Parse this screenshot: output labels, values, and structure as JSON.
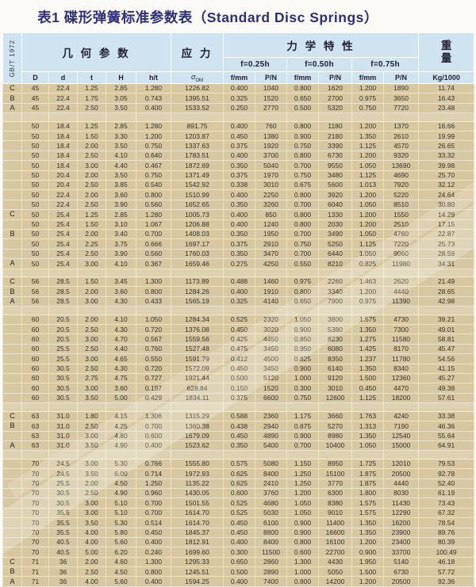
{
  "title": "表1 碟形弹簧标准参数表（Standard Disc Springs）",
  "standard_code": "GB/T 1972",
  "colors": {
    "header_bg": "#cfe3f0",
    "cell_bg": "#d8c8a2",
    "grid": "#eae2cc",
    "title_text": "#2d2f7b"
  },
  "table": {
    "group_headers": {
      "geometry": "几 何 参 数",
      "stress": "应 力",
      "mechanics": "力 学 特 性",
      "weight_line1": "重",
      "weight_line2": "量"
    },
    "deflection_headers": [
      "f=0.25h",
      "f=0.50h",
      "f=0.75h"
    ],
    "column_headers": {
      "D": "D",
      "d": "d",
      "t": "t",
      "H": "H",
      "ht": "h/t",
      "sigma": "σ",
      "sigma_sub": "OM",
      "f": "f/mm",
      "p": "P/N",
      "weight": "Kg/1000"
    },
    "rows": [
      {
        "g": "C",
        "c": [
          "45",
          "22.4",
          "1.25",
          "2.85",
          "1.280",
          "1226.82",
          "0.400",
          "1040",
          "0.800",
          "1620",
          "1.200",
          "1890",
          "11.74"
        ]
      },
      {
        "g": "B",
        "c": [
          "45",
          "22.4",
          "1.75",
          "3.05",
          "0.743",
          "1395.51",
          "0.325",
          "1520",
          "0.650",
          "2700",
          "0.975",
          "3650",
          "16.43"
        ]
      },
      {
        "g": "A",
        "c": [
          "45",
          "22.4",
          "2.50",
          "3.50",
          "0.400",
          "1533.52",
          "0.250",
          "2770",
          "0.500",
          "5320",
          "0.750",
          "7720",
          "23.48"
        ]
      },
      {
        "sep": true
      },
      {
        "g": "",
        "c": [
          "50",
          "18.4",
          "1.25",
          "2.85",
          "1.280",
          "891.75",
          "0.400",
          "760",
          "0.800",
          "1180",
          "1.200",
          "1370",
          "16.66"
        ]
      },
      {
        "g": "",
        "c": [
          "50",
          "18.4",
          "1.50",
          "3.30",
          "1.200",
          "1203.87",
          "0.450",
          "1380",
          "0.900",
          "2180",
          "1.350",
          "2610",
          "19.99"
        ]
      },
      {
        "g": "",
        "c": [
          "50",
          "18.4",
          "2.00",
          "3.50",
          "0.750",
          "1337.63",
          "0.375",
          "1920",
          "0.750",
          "3390",
          "1.125",
          "4570",
          "26.65"
        ]
      },
      {
        "g": "",
        "c": [
          "50",
          "18.4",
          "2.50",
          "4.10",
          "0.640",
          "1783.51",
          "0.400",
          "3700",
          "0.800",
          "6730",
          "1.200",
          "9320",
          "33.32"
        ]
      },
      {
        "g": "",
        "c": [
          "50",
          "18.4",
          "3.00",
          "4.40",
          "0.467",
          "1872.69",
          "0.350",
          "5040",
          "0.700",
          "9550",
          "1.050",
          "13690",
          "39.98"
        ]
      },
      {
        "g": "",
        "c": [
          "50",
          "20.4",
          "2.00",
          "3.50",
          "0.750",
          "1371.49",
          "0.375",
          "1970",
          "0.750",
          "3480",
          "1.125",
          "4690",
          "25.70"
        ]
      },
      {
        "g": "",
        "c": [
          "50",
          "20.4",
          "2.50",
          "3.85",
          "0.540",
          "1542.92",
          "0.338",
          "3010",
          "0.675",
          "5600",
          "1.013",
          "7920",
          "32.12"
        ]
      },
      {
        "g": "",
        "c": [
          "50",
          "22.4",
          "2.00",
          "3.60",
          "0.800",
          "1510.99",
          "0.400",
          "2250",
          "0.800",
          "3920",
          "1.200",
          "5220",
          "24.64"
        ]
      },
      {
        "g": "",
        "c": [
          "50",
          "22.4",
          "2.50",
          "3.90",
          "0.560",
          "1652.65",
          "0.350",
          "3260",
          "0.700",
          "6040",
          "1.050",
          "8510",
          "30.80"
        ]
      },
      {
        "g": "C",
        "c": [
          "50",
          "25.4",
          "1.25",
          "2.85",
          "1.280",
          "1005.73",
          "0.400",
          "850",
          "0.800",
          "1330",
          "1.200",
          "1550",
          "14.29"
        ]
      },
      {
        "g": "",
        "c": [
          "50",
          "25.4",
          "1.50",
          "3.10",
          "1.067",
          "1206.88",
          "0.400",
          "1240",
          "0.800",
          "2030",
          "1.200",
          "2510",
          "17.15"
        ]
      },
      {
        "g": "B",
        "c": [
          "50",
          "25.4",
          "2.00",
          "3.40",
          "0.700",
          "1408.03",
          "0.350",
          "1950",
          "0.700",
          "3490",
          "1.050",
          "4760",
          "22.87"
        ]
      },
      {
        "g": "",
        "c": [
          "50",
          "25.4",
          "2.25",
          "3.75",
          "0.666",
          "1697.17",
          "0.375",
          "2910",
          "0.750",
          "5250",
          "1.125",
          "7220",
          "25.73"
        ]
      },
      {
        "g": "",
        "c": [
          "50",
          "25.4",
          "2.50",
          "3.90",
          "0.560",
          "1760.03",
          "0.350",
          "3470",
          "0.700",
          "6440",
          "1.050",
          "9060",
          "28.59"
        ]
      },
      {
        "g": "A",
        "c": [
          "50",
          "25.4",
          "3.00",
          "4.10",
          "0.367",
          "1659.46",
          "0.275",
          "4250",
          "0.550",
          "8210",
          "0.825",
          "11980",
          "34.31"
        ]
      },
      {
        "sep": true
      },
      {
        "g": "C",
        "c": [
          "56",
          "28.5",
          "1.50",
          "3.45",
          "1.300",
          "1173.89",
          "0.488",
          "1460",
          "0.975",
          "2260",
          "1.463",
          "2620",
          "21.49"
        ]
      },
      {
        "g": "B",
        "c": [
          "56",
          "28.5",
          "2.00",
          "3.60",
          "0.800",
          "1284.26",
          "0.400",
          "1910",
          "0.800",
          "3340",
          "1.200",
          "4440",
          "28.65"
        ]
      },
      {
        "g": "A",
        "c": [
          "56",
          "28.5",
          "3.00",
          "4.30",
          "0.433",
          "1565.19",
          "0.325",
          "4140",
          "0.650",
          "7900",
          "0.975",
          "11390",
          "42.98"
        ]
      },
      {
        "sep": true
      },
      {
        "g": "",
        "c": [
          "60",
          "20.5",
          "2.00",
          "4.10",
          "1.050",
          "1284.34",
          "0.525",
          "2320",
          "1.050",
          "3800",
          "1.575",
          "4730",
          "39.21"
        ]
      },
      {
        "g": "",
        "c": [
          "60",
          "20.5",
          "2.50",
          "4.30",
          "0.720",
          "1376.08",
          "0.450",
          "3020",
          "0.900",
          "5380",
          "1.350",
          "7300",
          "49.01"
        ]
      },
      {
        "g": "",
        "c": [
          "60",
          "20.5",
          "3.00",
          "4.70",
          "0.567",
          "1559.56",
          "0.425",
          "4450",
          "0.850",
          "8230",
          "1.275",
          "11580",
          "58.81"
        ]
      },
      {
        "g": "",
        "c": [
          "60",
          "25.5",
          "2.50",
          "4.40",
          "0.760",
          "1527.48",
          "0.475",
          "3450",
          "0.950",
          "6080",
          "1.425",
          "8170",
          "45.47"
        ]
      },
      {
        "g": "",
        "c": [
          "60",
          "25.5",
          "3.00",
          "4.65",
          "0.550",
          "1591.79",
          "0.412",
          "4500",
          "0.825",
          "8350",
          "1.237",
          "11780",
          "54.56"
        ]
      },
      {
        "g": "",
        "c": [
          "60",
          "30.5",
          "2.50",
          "4.30",
          "0.720",
          "1572.09",
          "0.450",
          "3450",
          "0.900",
          "6140",
          "1.350",
          "8340",
          "41.15"
        ]
      },
      {
        "g": "",
        "c": [
          "60",
          "30.5",
          "2.75",
          "4.75",
          "0.727",
          "1921.44",
          "0.500",
          "5120",
          "1.000",
          "9120",
          "1.500",
          "12360",
          "45.27"
        ]
      },
      {
        "g": "",
        "c": [
          "60",
          "30.5",
          "3.00",
          "3.60",
          "0.197",
          "628.84",
          "0.150",
          "1520",
          "0.300",
          "3010",
          "0.450",
          "4470",
          "49.38"
        ]
      },
      {
        "g": "",
        "c": [
          "60",
          "30.5",
          "3.50",
          "5.00",
          "0.429",
          "1834.11",
          "0.375",
          "6600",
          "0.750",
          "12600",
          "1.125",
          "18200",
          "57.61"
        ]
      },
      {
        "sep": true
      },
      {
        "g": "C",
        "c": [
          "63",
          "31.0",
          "1.80",
          "4.15",
          "1.306",
          "1315.29",
          "0.588",
          "2360",
          "1.175",
          "3660",
          "1.763",
          "4240",
          "33.38"
        ]
      },
      {
        "g": "B",
        "c": [
          "63",
          "31.0",
          "2.50",
          "4.25",
          "0.700",
          "1360.38",
          "0.438",
          "2940",
          "0.875",
          "5270",
          "1.313",
          "7190",
          "46.36"
        ]
      },
      {
        "g": "",
        "c": [
          "63",
          "31.0",
          "3.00",
          "4.80",
          "0.600",
          "1679.09",
          "0.450",
          "4890",
          "0.900",
          "8980",
          "1.350",
          "12540",
          "55.64"
        ]
      },
      {
        "g": "A",
        "c": [
          "63",
          "31.0",
          "3.50",
          "4.90",
          "0.400",
          "1523.62",
          "0.350",
          "5400",
          "0.700",
          "10400",
          "1.050",
          "15000",
          "64.91"
        ]
      },
      {
        "sep": true
      },
      {
        "g": "",
        "c": [
          "70",
          "24.5",
          "3.00",
          "5.30",
          "0.766",
          "1555.80",
          "0.575",
          "5080",
          "1.150",
          "8950",
          "1.725",
          "12010",
          "79.53"
        ]
      },
      {
        "g": "",
        "c": [
          "70",
          "24.5",
          "3.50",
          "6.00",
          "0.714",
          "1972.93",
          "0.625",
          "8400",
          "1.250",
          "15100",
          "1.875",
          "20500",
          "92.78"
        ]
      },
      {
        "g": "",
        "c": [
          "70",
          "25.5",
          "2.00",
          "4.50",
          "1.250",
          "1135.22",
          "0.625",
          "2410",
          "1.250",
          "3770",
          "1.875",
          "4440",
          "52.40"
        ]
      },
      {
        "g": "",
        "c": [
          "70",
          "30.5",
          "2.50",
          "4.90",
          "0.960",
          "1430.05",
          "0.600",
          "3760",
          "1.200",
          "6300",
          "1.800",
          "8030",
          "61.19"
        ]
      },
      {
        "g": "",
        "c": [
          "70",
          "30.5",
          "3.00",
          "5.10",
          "0.700",
          "1501.55",
          "0.525",
          "4680",
          "1.050",
          "8380",
          "1.575",
          "11430",
          "73.43"
        ]
      },
      {
        "g": "",
        "c": [
          "70",
          "35.5",
          "3.00",
          "5.10",
          "0.700",
          "1614.70",
          "0.525",
          "5030",
          "1.050",
          "9010",
          "1.575",
          "12290",
          "67.32"
        ]
      },
      {
        "g": "",
        "c": [
          "70",
          "35.5",
          "3.50",
          "5.30",
          "0.514",
          "1614.70",
          "0.450",
          "6100",
          "0.900",
          "11400",
          "1.350",
          "16200",
          "78.54"
        ]
      },
      {
        "g": "",
        "c": [
          "70",
          "35.5",
          "4.00",
          "5.80",
          "0.450",
          "1845.37",
          "0.450",
          "8800",
          "0.900",
          "16600",
          "1.350",
          "23900",
          "89.76"
        ]
      },
      {
        "g": "",
        "c": [
          "70",
          "40.5",
          "4.00",
          "5.60",
          "0.400",
          "1812.91",
          "0.400",
          "8400",
          "0.800",
          "16100",
          "1.200",
          "23400",
          "80.39"
        ]
      },
      {
        "g": "",
        "c": [
          "70",
          "40.5",
          "5.00",
          "6.20",
          "0.240",
          "1699.60",
          "0.300",
          "11500",
          "0.600",
          "22700",
          "0.900",
          "33700",
          "100.49"
        ]
      },
      {
        "g": "C",
        "c": [
          "71",
          "36",
          "2.00",
          "4.60",
          "1.300",
          "1295.33",
          "0.650",
          "2860",
          "1.300",
          "4430",
          "1.950",
          "5140",
          "46.18"
        ]
      },
      {
        "g": "B",
        "c": [
          "71",
          "36",
          "2.50",
          "4.50",
          "0.800",
          "1245.51",
          "0.500",
          "2890",
          "1.000",
          "5050",
          "1.500",
          "6730",
          "57.72"
        ]
      },
      {
        "g": "A",
        "c": [
          "71",
          "36",
          "4.00",
          "5.60",
          "0.400",
          "1594.25",
          "0.400",
          "7400",
          "0.800",
          "14200",
          "1.200",
          "20500",
          "92.36"
        ]
      }
    ]
  }
}
